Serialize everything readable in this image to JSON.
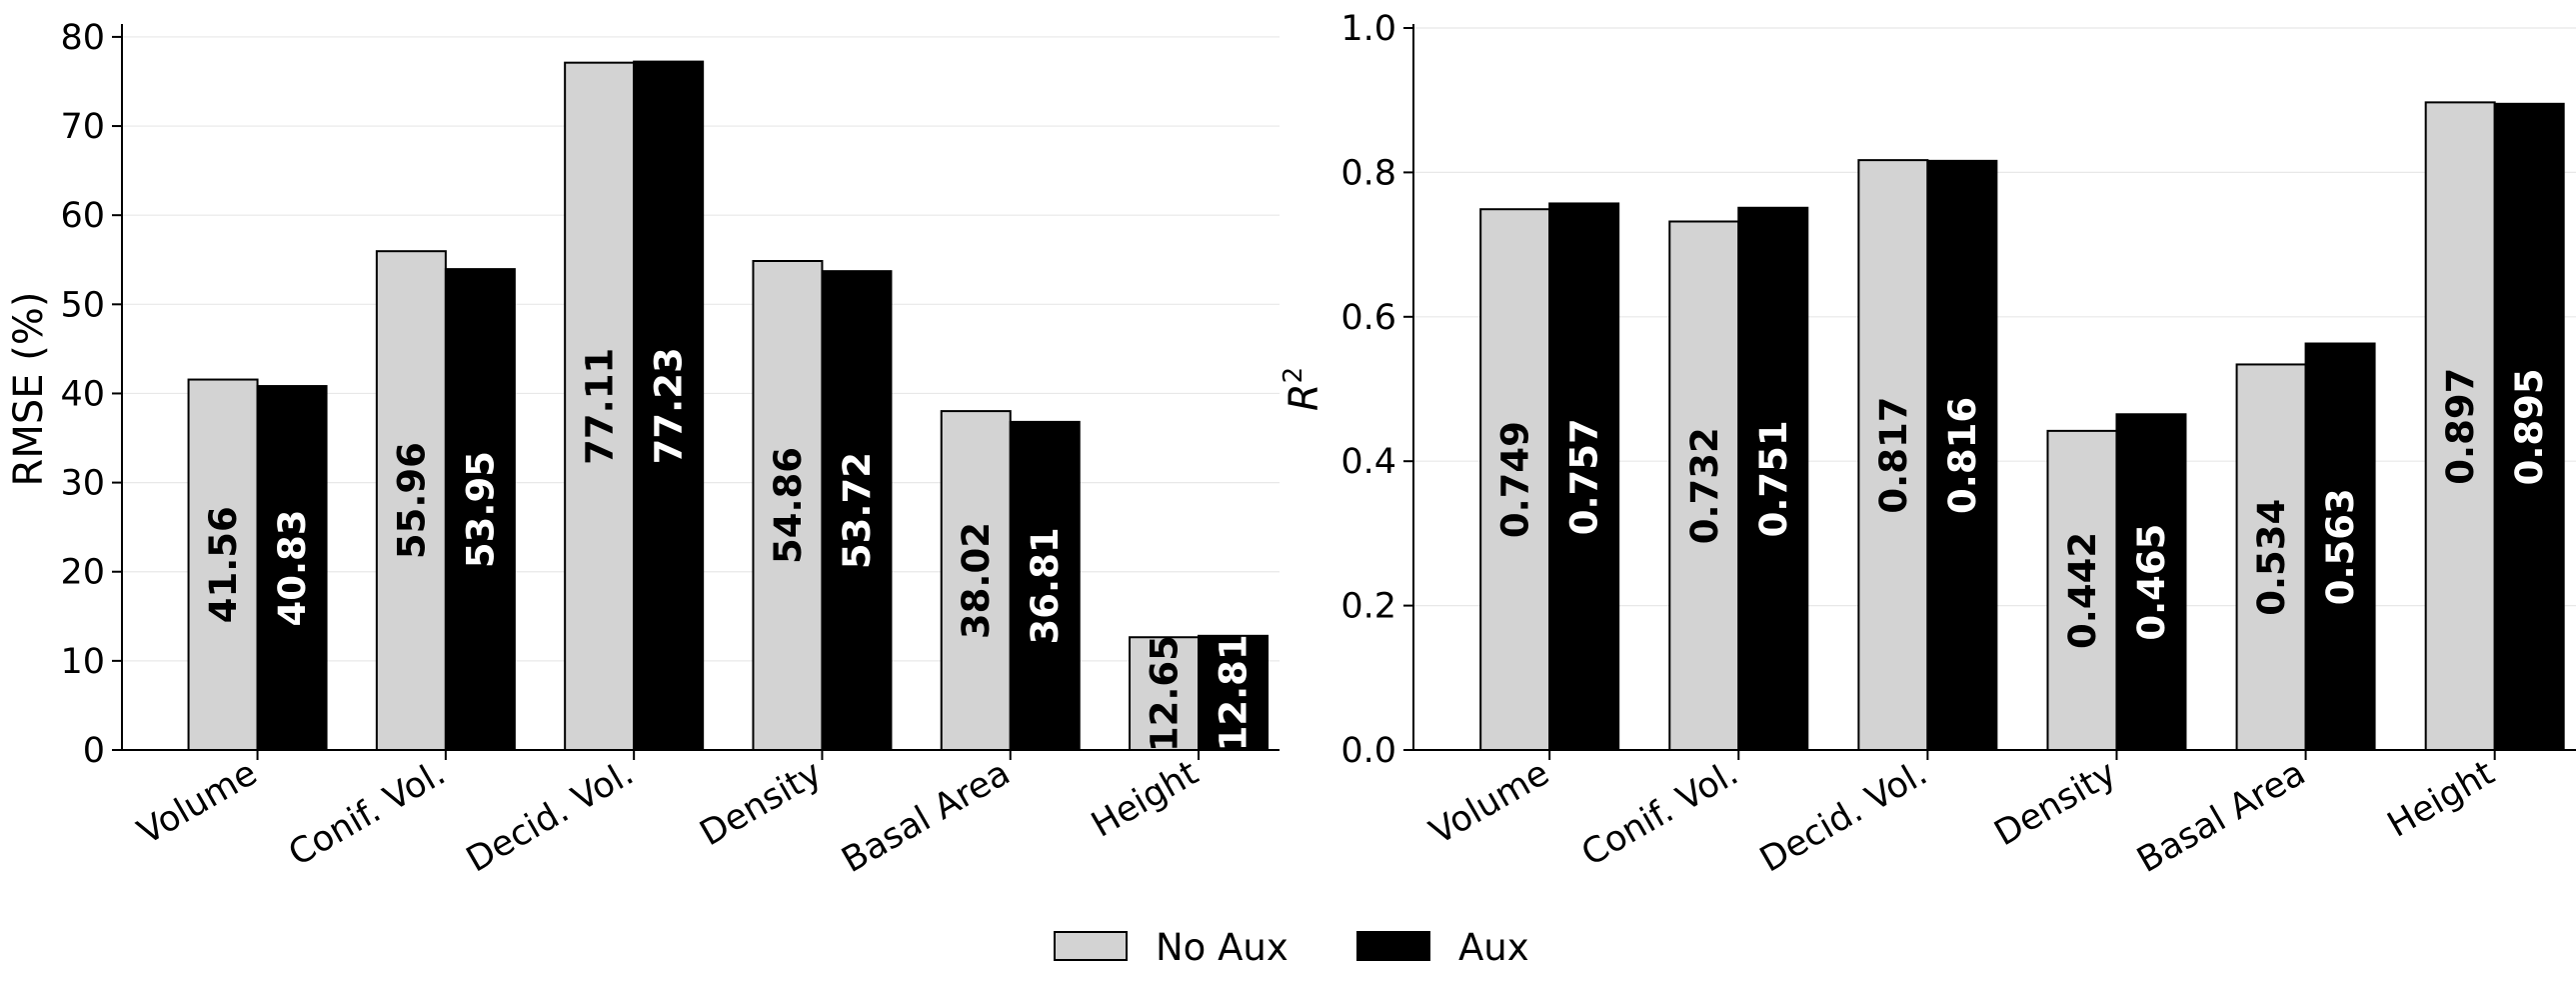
{
  "colors": {
    "no_aux": "#d3d3d3",
    "aux": "#000000",
    "grid": "#e8e8e8"
  },
  "legend": {
    "placement": "bottom-center",
    "items": [
      "No Aux",
      "Aux"
    ]
  },
  "chart_data": [
    {
      "type": "bar",
      "categories": [
        "Volume",
        "Conif. Vol.",
        "Decid. Vol.",
        "Density",
        "Basal Area",
        "Height"
      ],
      "series": [
        {
          "name": "No Aux",
          "values": [
            41.56,
            55.96,
            77.11,
            54.86,
            38.02,
            12.65
          ],
          "labels": [
            "41.56",
            "55.96",
            "77.11",
            "54.86",
            "38.02",
            "12.65"
          ]
        },
        {
          "name": "Aux",
          "values": [
            40.83,
            53.95,
            77.23,
            53.72,
            36.81,
            12.81
          ],
          "labels": [
            "40.83",
            "53.95",
            "77.23",
            "53.72",
            "36.81",
            "12.81"
          ]
        }
      ],
      "xlabel": "",
      "ylabel": "RMSE (%)",
      "ylim": [
        0,
        81
      ],
      "yticks": [
        0,
        10,
        20,
        30,
        40,
        50,
        60,
        70,
        80
      ],
      "ytick_labels": [
        "0",
        "10",
        "20",
        "30",
        "40",
        "50",
        "60",
        "70",
        "80"
      ],
      "grid": "horizontal"
    },
    {
      "type": "bar",
      "categories": [
        "Volume",
        "Conif. Vol.",
        "Decid. Vol.",
        "Density",
        "Basal Area",
        "Height"
      ],
      "series": [
        {
          "name": "No Aux",
          "values": [
            0.749,
            0.732,
            0.817,
            0.442,
            0.534,
            0.897
          ],
          "labels": [
            "0.749",
            "0.732",
            "0.817",
            "0.442",
            "0.534",
            "0.897"
          ]
        },
        {
          "name": "Aux",
          "values": [
            0.757,
            0.751,
            0.816,
            0.465,
            0.563,
            0.895
          ],
          "labels": [
            "0.757",
            "0.751",
            "0.816",
            "0.465",
            "0.563",
            "0.895"
          ]
        }
      ],
      "xlabel": "",
      "ylabel": "R",
      "ylabel_sup": "2",
      "ylim": [
        0,
        1.0
      ],
      "yticks": [
        0,
        0.2,
        0.4,
        0.6,
        0.8,
        1.0
      ],
      "ytick_labels": [
        "0.0",
        "0.2",
        "0.4",
        "0.6",
        "0.8",
        "1.0"
      ],
      "grid": "horizontal"
    }
  ]
}
